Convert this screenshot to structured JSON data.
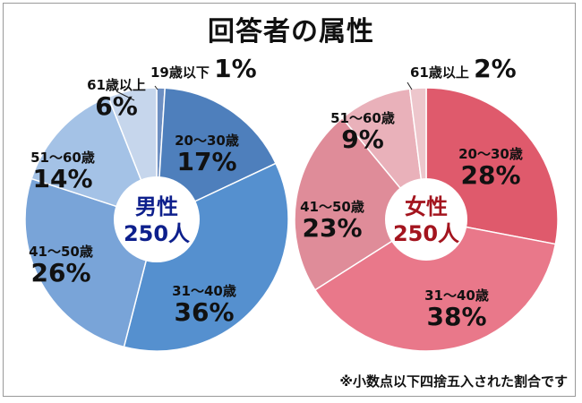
{
  "title": "回答者の属性",
  "note": "※小数点以下四捨五入された割合です",
  "chart_data": [
    {
      "type": "pie",
      "center_label": [
        "男性",
        "250人"
      ],
      "center_color": "#0d1f8c",
      "slices": [
        {
          "label": "19歳以下",
          "value": 1,
          "color": "#6d8fc2"
        },
        {
          "label": "20〜30歳",
          "value": 17,
          "color": "#4e7fbc"
        },
        {
          "label": "31〜40歳",
          "value": 36,
          "color": "#5590cf"
        },
        {
          "label": "41〜50歳",
          "value": 26,
          "color": "#79a4d8"
        },
        {
          "label": "51〜60歳",
          "value": 14,
          "color": "#a4c2e6"
        },
        {
          "label": "61歳以上",
          "value": 6,
          "color": "#c6d6ec"
        }
      ]
    },
    {
      "type": "pie",
      "center_label": [
        "女性",
        "250人"
      ],
      "center_color": "#a3141e",
      "slices": [
        {
          "label": "20〜30歳",
          "value": 28,
          "color": "#df5a6c"
        },
        {
          "label": "31〜40歳",
          "value": 38,
          "color": "#e9788a"
        },
        {
          "label": "41〜50歳",
          "value": 23,
          "color": "#df8c99"
        },
        {
          "label": "51〜60歳",
          "value": 9,
          "color": "#e9b1ba"
        },
        {
          "label": "61歳以上",
          "value": 2,
          "color": "#edc6cc"
        }
      ]
    }
  ]
}
